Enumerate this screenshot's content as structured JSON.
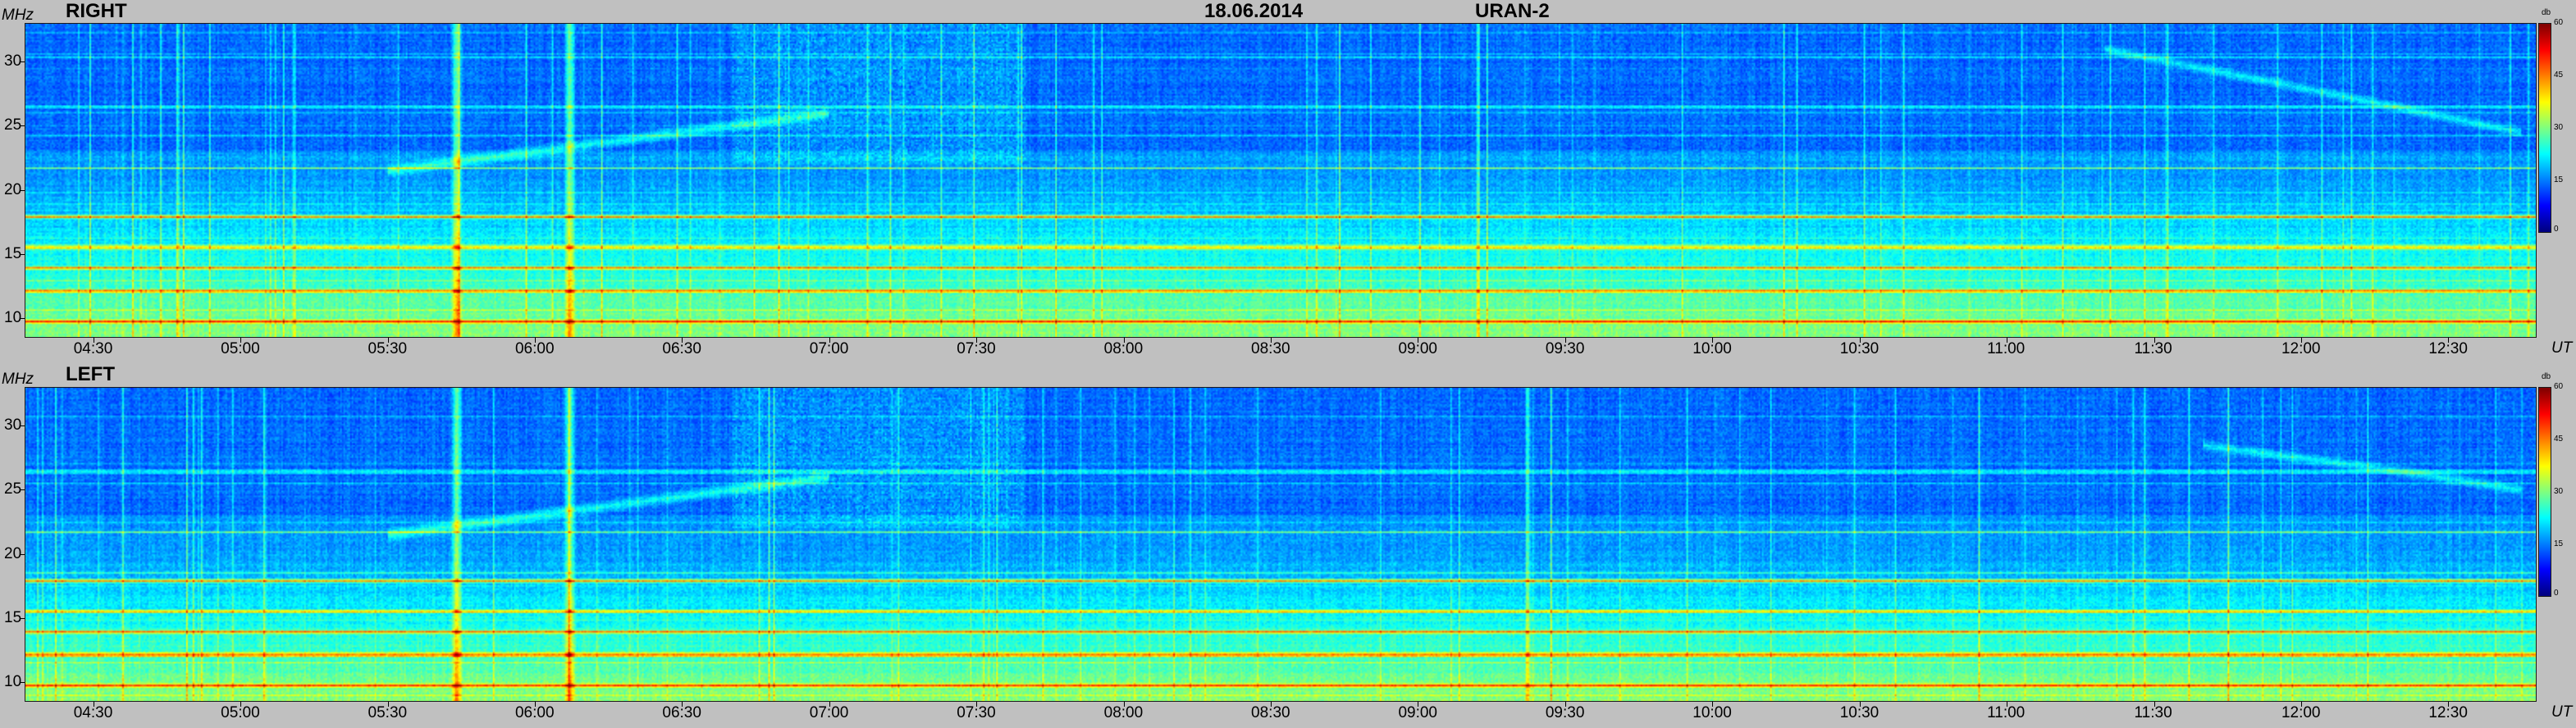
{
  "header": {
    "date": "18.06.2014",
    "instrument": "URAN-2"
  },
  "axes": {
    "y_unit": "MHz",
    "x_unit": "UT",
    "colorbar_unit": "db"
  },
  "chart_data": [
    {
      "type": "heatmap",
      "title": "RIGHT",
      "ylabel": "MHz",
      "xlabel": "UT",
      "x_ticks": [
        "04:30",
        "05:00",
        "05:30",
        "06:00",
        "06:30",
        "07:00",
        "07:30",
        "08:00",
        "08:30",
        "09:00",
        "09:30",
        "10:00",
        "10:30",
        "11:00",
        "11:30",
        "12:00",
        "12:30"
      ],
      "y_ticks": [
        10,
        15,
        20,
        25,
        30
      ],
      "ylim": [
        8.5,
        33
      ],
      "xlim": [
        "04:16",
        "12:48"
      ],
      "colorbar": {
        "label": "db",
        "ticks": [
          0,
          15,
          30,
          45,
          60
        ],
        "range": [
          0,
          60
        ]
      },
      "features": {
        "bright_horizontal_bands_mhz": [
          17.9,
          15.5,
          13.9,
          12.1,
          9.7
        ],
        "vertical_bursts_ut": [
          "05:44",
          "06:07"
        ],
        "drifting_emission": [
          [
            "05:30",
            21.5
          ],
          [
            "06:30",
            24.5
          ],
          [
            "07:00",
            26.0
          ]
        ],
        "late_drift": [
          [
            "11:20",
            31.0
          ],
          [
            "12:00",
            28.0
          ],
          [
            "12:45",
            24.5
          ]
        ]
      }
    },
    {
      "type": "heatmap",
      "title": "LEFT",
      "ylabel": "MHz",
      "xlabel": "UT",
      "x_ticks": [
        "04:30",
        "05:00",
        "05:30",
        "06:00",
        "06:30",
        "07:00",
        "07:30",
        "08:00",
        "08:30",
        "09:00",
        "09:30",
        "10:00",
        "10:30",
        "11:00",
        "11:30",
        "12:00",
        "12:30"
      ],
      "y_ticks": [
        10,
        15,
        20,
        25,
        30
      ],
      "ylim": [
        8.5,
        33
      ],
      "xlim": [
        "04:16",
        "12:48"
      ],
      "colorbar": {
        "label": "db",
        "ticks": [
          0,
          15,
          30,
          45,
          60
        ],
        "range": [
          0,
          60
        ]
      },
      "features": {
        "bright_horizontal_bands_mhz": [
          17.9,
          15.5,
          13.9,
          12.1,
          9.7
        ],
        "vertical_bursts_ut": [
          "05:44",
          "06:07"
        ],
        "drifting_emission": [
          [
            "05:30",
            21.5
          ],
          [
            "06:30",
            24.5
          ],
          [
            "07:00",
            26.0
          ]
        ],
        "late_drift": [
          [
            "11:40",
            28.5
          ],
          [
            "12:20",
            26.5
          ],
          [
            "12:45",
            25.0
          ]
        ]
      }
    }
  ]
}
